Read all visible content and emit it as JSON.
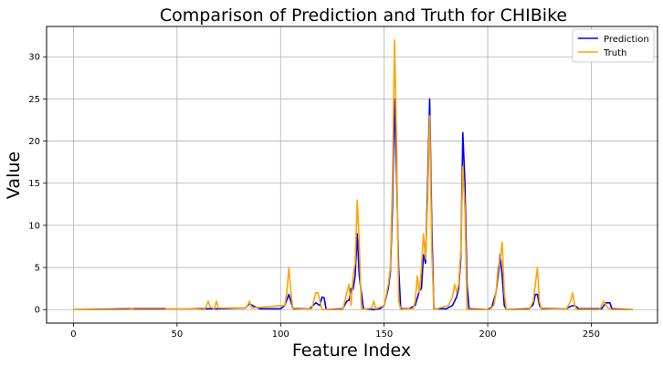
{
  "chart_data": {
    "type": "line",
    "title": "Comparison of Prediction and Truth for CHIBike",
    "xlabel": "Feature Index",
    "ylabel": "Value",
    "xlim": [
      -13,
      282
    ],
    "ylim": [
      -1.6,
      33.6
    ],
    "xticks": [
      0,
      50,
      100,
      150,
      200,
      250
    ],
    "yticks": [
      0,
      5,
      10,
      15,
      20,
      25,
      30
    ],
    "grid": true,
    "legend_position": "top-right",
    "series": [
      {
        "name": "Prediction",
        "color": "#0000ff",
        "points": [
          [
            0,
            0
          ],
          [
            28,
            0.1
          ],
          [
            64,
            0.1
          ],
          [
            66,
            0.1
          ],
          [
            68,
            0.1
          ],
          [
            70,
            0.1
          ],
          [
            83,
            0.2
          ],
          [
            85,
            0.7
          ],
          [
            87,
            0.4
          ],
          [
            90,
            0.1
          ],
          [
            100,
            0.1
          ],
          [
            102,
            0.5
          ],
          [
            104,
            1.8
          ],
          [
            106,
            0.1
          ],
          [
            114,
            0.1
          ],
          [
            117,
            0.8
          ],
          [
            119,
            0.5
          ],
          [
            120,
            1.5
          ],
          [
            121,
            1.4
          ],
          [
            122,
            0
          ],
          [
            130,
            0.1
          ],
          [
            132,
            1
          ],
          [
            133,
            1.1
          ],
          [
            134,
            2.5
          ],
          [
            135,
            2.4
          ],
          [
            136,
            4
          ],
          [
            137,
            9
          ],
          [
            138,
            4
          ],
          [
            140,
            0.1
          ],
          [
            145,
            0
          ],
          [
            148,
            0.1
          ],
          [
            150,
            0.5
          ],
          [
            152,
            2.5
          ],
          [
            153,
            4.5
          ],
          [
            154,
            12
          ],
          [
            155,
            25
          ],
          [
            156,
            16
          ],
          [
            157,
            5
          ],
          [
            158,
            0.1
          ],
          [
            162,
            0.1
          ],
          [
            165,
            0.5
          ],
          [
            167,
            2.2
          ],
          [
            168,
            2.5
          ],
          [
            169,
            6.5
          ],
          [
            170,
            5.5
          ],
          [
            171,
            15
          ],
          [
            172,
            25
          ],
          [
            173,
            10
          ],
          [
            174,
            0.1
          ],
          [
            180,
            0.1
          ],
          [
            183,
            0.5
          ],
          [
            185,
            1.5
          ],
          [
            186,
            2.5
          ],
          [
            187,
            6
          ],
          [
            188,
            21
          ],
          [
            189,
            15
          ],
          [
            190,
            3
          ],
          [
            191,
            0.1
          ],
          [
            200,
            0
          ],
          [
            202,
            0.3
          ],
          [
            204,
            2
          ],
          [
            205,
            4
          ],
          [
            206,
            6.5
          ],
          [
            207,
            4
          ],
          [
            208,
            0.5
          ],
          [
            209,
            0
          ],
          [
            220,
            0.1
          ],
          [
            222,
            0.6
          ],
          [
            223,
            1.8
          ],
          [
            224,
            1.8
          ],
          [
            225,
            0.5
          ],
          [
            226,
            0.1
          ],
          [
            238,
            0.1
          ],
          [
            240,
            0.4
          ],
          [
            242,
            0.5
          ],
          [
            244,
            0.1
          ],
          [
            255,
            0.1
          ],
          [
            257,
            0.8
          ],
          [
            259,
            0.8
          ],
          [
            260,
            0.1
          ],
          [
            270,
            0
          ]
        ]
      },
      {
        "name": "Truth",
        "color": "#ffa500",
        "points": [
          [
            0,
            0
          ],
          [
            27,
            0
          ],
          [
            28,
            0.2
          ],
          [
            29,
            0
          ],
          [
            44,
            0
          ],
          [
            45,
            0.1
          ],
          [
            56,
            0.1
          ],
          [
            63,
            0
          ],
          [
            64,
            0.3
          ],
          [
            65,
            1
          ],
          [
            66,
            0.3
          ],
          [
            68,
            0.1
          ],
          [
            69,
            1
          ],
          [
            70,
            0.2
          ],
          [
            83,
            0.2
          ],
          [
            84,
            0.5
          ],
          [
            85,
            1
          ],
          [
            86,
            0.2
          ],
          [
            102,
            0.5
          ],
          [
            103,
            2
          ],
          [
            104,
            5
          ],
          [
            105,
            2
          ],
          [
            106,
            0
          ],
          [
            115,
            0.1
          ],
          [
            116,
            1
          ],
          [
            117,
            2
          ],
          [
            118,
            2
          ],
          [
            119,
            1
          ],
          [
            120,
            0
          ],
          [
            130,
            0
          ],
          [
            132,
            2
          ],
          [
            133,
            3
          ],
          [
            134,
            0.5
          ],
          [
            135,
            4
          ],
          [
            136,
            5.5
          ],
          [
            137,
            13
          ],
          [
            138,
            8
          ],
          [
            139,
            0
          ],
          [
            144,
            0.2
          ],
          [
            145,
            1
          ],
          [
            146,
            0.1
          ],
          [
            150,
            0.5
          ],
          [
            152,
            3
          ],
          [
            153,
            5
          ],
          [
            154,
            15
          ],
          [
            155,
            32
          ],
          [
            156,
            20
          ],
          [
            157,
            1
          ],
          [
            158,
            0
          ],
          [
            164,
            0.1
          ],
          [
            165,
            1
          ],
          [
            166,
            4
          ],
          [
            167,
            2
          ],
          [
            168,
            5
          ],
          [
            169,
            9
          ],
          [
            170,
            6
          ],
          [
            171,
            13
          ],
          [
            172,
            23
          ],
          [
            173,
            7
          ],
          [
            174,
            0
          ],
          [
            181,
            0.5
          ],
          [
            183,
            1.5
          ],
          [
            184,
            3
          ],
          [
            185,
            2
          ],
          [
            186,
            3
          ],
          [
            187,
            7
          ],
          [
            188,
            17
          ],
          [
            189,
            12
          ],
          [
            190,
            0
          ],
          [
            201,
            0
          ],
          [
            203,
            0.5
          ],
          [
            204,
            2
          ],
          [
            205,
            5
          ],
          [
            206,
            6
          ],
          [
            207,
            8
          ],
          [
            208,
            2
          ],
          [
            209,
            0
          ],
          [
            220,
            0
          ],
          [
            222,
            1
          ],
          [
            223,
            3
          ],
          [
            224,
            5
          ],
          [
            225,
            1
          ],
          [
            226,
            0
          ],
          [
            238,
            0.1
          ],
          [
            240,
            1
          ],
          [
            241,
            2
          ],
          [
            242,
            0.5
          ],
          [
            243,
            0
          ],
          [
            254,
            0
          ],
          [
            256,
            1
          ],
          [
            258,
            0.2
          ],
          [
            260,
            0
          ],
          [
            270,
            0
          ]
        ]
      }
    ]
  }
}
